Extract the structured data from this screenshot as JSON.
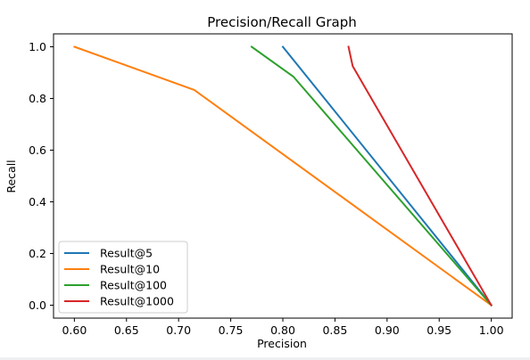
{
  "chart_data": {
    "type": "line",
    "title": "Precision/Recall Graph",
    "xlabel": "Precision",
    "ylabel": "Recall",
    "xlim": [
      0.58,
      1.02
    ],
    "ylim": [
      -0.05,
      1.05
    ],
    "xticks": [
      0.6,
      0.65,
      0.7,
      0.75,
      0.8,
      0.85,
      0.9,
      0.95,
      1.0
    ],
    "xtick_labels": [
      "0.60",
      "0.65",
      "0.70",
      "0.75",
      "0.80",
      "0.85",
      "0.90",
      "0.95",
      "1.00"
    ],
    "yticks": [
      0.0,
      0.2,
      0.4,
      0.6,
      0.8,
      1.0
    ],
    "ytick_labels": [
      "0.0",
      "0.2",
      "0.4",
      "0.6",
      "0.8",
      "1.0"
    ],
    "grid": false,
    "legend_position": "lower-left",
    "series": [
      {
        "name": "Result@5",
        "color": "#1f77b4",
        "x": [
          0.8,
          1.0
        ],
        "y": [
          1.0,
          0.0
        ]
      },
      {
        "name": "Result@10",
        "color": "#ff7f0e",
        "x": [
          0.6,
          0.715,
          1.0
        ],
        "y": [
          1.0,
          0.833,
          0.0
        ]
      },
      {
        "name": "Result@100",
        "color": "#2ca02c",
        "x": [
          0.77,
          0.81,
          1.0
        ],
        "y": [
          1.0,
          0.885,
          0.0
        ]
      },
      {
        "name": "Result@1000",
        "color": "#d62728",
        "x": [
          0.863,
          0.867,
          1.0
        ],
        "y": [
          1.0,
          0.925,
          0.0
        ]
      }
    ]
  }
}
